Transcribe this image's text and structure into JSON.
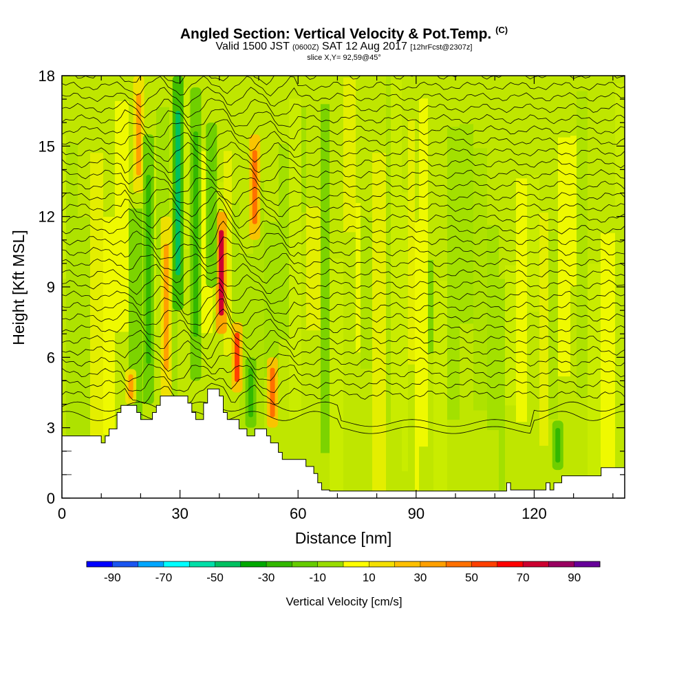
{
  "header": {
    "title_main": "Angled Section: Vertical Velocity & Pot.Temp.",
    "title_suffix": "(C)",
    "valid_prefix": "Valid 1500 JST",
    "valid_utc": "(0600Z)",
    "valid_date": "SAT 12 Aug 2017",
    "valid_fcst": "[12hrFcst@2307z]",
    "slice": "slice X,Y= 92,59@45°"
  },
  "chart_data": {
    "type": "heatmap",
    "xlabel": "Distance [nm]",
    "ylabel": "Height [Kft MSL]",
    "xlim": [
      0,
      143
    ],
    "ylim": [
      0,
      18
    ],
    "x_ticks": [
      0,
      30,
      60,
      90,
      120
    ],
    "y_ticks": [
      0,
      3,
      6,
      9,
      12,
      15,
      18
    ],
    "terrain_kft": [
      [
        0,
        2.65
      ],
      [
        10,
        2.65
      ],
      [
        10,
        2.35
      ],
      [
        11,
        2.35
      ],
      [
        11,
        2.65
      ],
      [
        12,
        2.65
      ],
      [
        12,
        2.95
      ],
      [
        14,
        2.95
      ],
      [
        14,
        3.65
      ],
      [
        15,
        3.65
      ],
      [
        15,
        3.95
      ],
      [
        19,
        3.95
      ],
      [
        19,
        3.65
      ],
      [
        20,
        3.65
      ],
      [
        20,
        3.35
      ],
      [
        23,
        3.35
      ],
      [
        23,
        3.65
      ],
      [
        24,
        3.65
      ],
      [
        24,
        3.95
      ],
      [
        25,
        3.95
      ],
      [
        25,
        4.35
      ],
      [
        32,
        4.35
      ],
      [
        32,
        4.05
      ],
      [
        33,
        4.05
      ],
      [
        33,
        3.65
      ],
      [
        34,
        3.65
      ],
      [
        34,
        3.35
      ],
      [
        36,
        3.35
      ],
      [
        36,
        4.05
      ],
      [
        37,
        4.05
      ],
      [
        37,
        4.65
      ],
      [
        40,
        4.65
      ],
      [
        40,
        4.35
      ],
      [
        41,
        4.35
      ],
      [
        41,
        3.65
      ],
      [
        42,
        3.65
      ],
      [
        42,
        3.35
      ],
      [
        45,
        3.35
      ],
      [
        45,
        2.95
      ],
      [
        47,
        2.95
      ],
      [
        47,
        2.65
      ],
      [
        49,
        2.65
      ],
      [
        49,
        2.95
      ],
      [
        52,
        2.95
      ],
      [
        52,
        2.65
      ],
      [
        53,
        2.65
      ],
      [
        53,
        2.35
      ],
      [
        55,
        2.35
      ],
      [
        55,
        1.95
      ],
      [
        56,
        1.95
      ],
      [
        56,
        1.65
      ],
      [
        62,
        1.65
      ],
      [
        62,
        1.35
      ],
      [
        64,
        1.35
      ],
      [
        64,
        1.05
      ],
      [
        65,
        1.05
      ],
      [
        65,
        0.65
      ],
      [
        66,
        0.65
      ],
      [
        66,
        0.35
      ],
      [
        68,
        0.35
      ],
      [
        68,
        0.3
      ],
      [
        113,
        0.3
      ],
      [
        113,
        0.65
      ],
      [
        114,
        0.65
      ],
      [
        114,
        0.35
      ],
      [
        123,
        0.35
      ],
      [
        123,
        0.65
      ],
      [
        124,
        0.65
      ],
      [
        124,
        0.35
      ],
      [
        125,
        0.35
      ],
      [
        125,
        0.65
      ],
      [
        127,
        0.65
      ],
      [
        127,
        0.95
      ],
      [
        137,
        0.95
      ],
      [
        137,
        1.3
      ],
      [
        143,
        1.3
      ]
    ],
    "updraft_streaks": [
      {
        "x": 17.5,
        "y0": 4.0,
        "y1": 5.5,
        "peak_cms": 30
      },
      {
        "x": 19.5,
        "y0": 13.0,
        "y1": 18.0,
        "peak_cms": 30
      },
      {
        "x": 26.5,
        "y0": 4.3,
        "y1": 12.0,
        "peak_cms": 30
      },
      {
        "x": 40.5,
        "y0": 7.0,
        "y1": 12.2,
        "peak_cms": 70
      },
      {
        "x": 44.5,
        "y0": 4.5,
        "y1": 7.5,
        "peak_cms": 50
      },
      {
        "x": 49.0,
        "y0": 11.0,
        "y1": 15.5,
        "peak_cms": 40
      },
      {
        "x": 53.5,
        "y0": 3.0,
        "y1": 6.0,
        "peak_cms": 40
      }
    ],
    "downdraft_streaks": [
      {
        "x": 22.0,
        "y0": 4.0,
        "y1": 15.5,
        "peak_cms": -30
      },
      {
        "x": 29.5,
        "y0": 8.0,
        "y1": 18.0,
        "peak_cms": -50
      },
      {
        "x": 34.0,
        "y0": 5.0,
        "y1": 17.5,
        "peak_cms": -30
      },
      {
        "x": 38.0,
        "y0": 9.0,
        "y1": 16.0,
        "peak_cms": -20
      },
      {
        "x": 48.0,
        "y0": 3.0,
        "y1": 6.0,
        "peak_cms": -30
      },
      {
        "x": 126.0,
        "y0": 1.2,
        "y1": 3.3,
        "peak_cms": -30
      }
    ],
    "colorbar": {
      "title": "Vertical Velocity [cm/s]",
      "min": -100,
      "max": 100,
      "step": 10,
      "tick_values": [
        -90,
        -70,
        -50,
        -30,
        -10,
        10,
        30,
        50,
        70,
        90
      ],
      "tick_labels": [
        "-90",
        "-70",
        "-50",
        "-30",
        "-10",
        "10",
        "30",
        "50",
        "70",
        "90"
      ],
      "colors": [
        "#0000ff",
        "#1a55f0",
        "#00a6ff",
        "#00ffff",
        "#00dfa8",
        "#00c060",
        "#00a800",
        "#33b800",
        "#66cc00",
        "#99dd00",
        "#ffff00",
        "#f5e000",
        "#ffc000",
        "#ffa000",
        "#ff7000",
        "#ff4000",
        "#ff0000",
        "#cc0030",
        "#990060",
        "#660099"
      ]
    }
  }
}
